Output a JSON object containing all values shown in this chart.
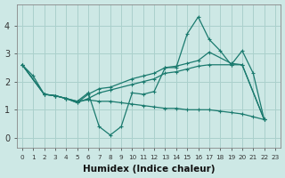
{
  "xlabel": "Humidex (Indice chaleur)",
  "bg_color": "#cde8e5",
  "grid_color": "#aad0cc",
  "line_color": "#1a7a6e",
  "xlim": [
    -0.5,
    23.5
  ],
  "ylim": [
    -0.35,
    4.75
  ],
  "ytick_values": [
    0,
    1,
    2,
    3,
    4
  ],
  "line1_x": [
    0,
    1,
    2,
    3,
    4,
    5,
    6,
    7,
    8,
    9,
    10,
    11,
    12,
    13,
    14,
    15,
    16,
    17,
    18,
    19,
    20,
    21,
    22
  ],
  "line1_y": [
    2.6,
    2.2,
    1.55,
    1.5,
    1.4,
    1.3,
    1.6,
    0.4,
    0.1,
    0.4,
    1.6,
    1.55,
    1.65,
    2.5,
    2.5,
    3.7,
    4.3,
    3.5,
    3.1,
    2.6,
    3.1,
    2.3,
    0.65
  ],
  "line2_x": [
    0,
    2,
    3,
    4,
    5,
    6,
    7,
    8,
    10,
    11,
    12,
    13,
    14,
    15,
    16,
    17,
    19,
    20,
    22
  ],
  "line2_y": [
    2.6,
    1.55,
    1.5,
    1.4,
    1.25,
    1.55,
    1.75,
    1.8,
    2.1,
    2.2,
    2.3,
    2.5,
    2.55,
    2.65,
    2.75,
    3.05,
    2.65,
    2.6,
    0.65
  ],
  "line3_x": [
    0,
    2,
    3,
    4,
    5,
    6,
    7,
    8,
    10,
    11,
    12,
    13,
    14,
    15,
    16,
    17,
    19,
    20,
    22
  ],
  "line3_y": [
    2.6,
    1.55,
    1.5,
    1.4,
    1.25,
    1.4,
    1.6,
    1.7,
    1.9,
    2.0,
    2.1,
    2.3,
    2.35,
    2.45,
    2.55,
    2.6,
    2.6,
    2.6,
    0.65
  ],
  "line4_x": [
    0,
    2,
    3,
    4,
    5,
    6,
    7,
    8,
    9,
    10,
    11,
    12,
    13,
    14,
    15,
    16,
    17,
    18,
    19,
    20,
    21,
    22
  ],
  "line4_y": [
    2.6,
    1.55,
    1.5,
    1.4,
    1.3,
    1.35,
    1.3,
    1.3,
    1.25,
    1.2,
    1.15,
    1.1,
    1.05,
    1.05,
    1.0,
    1.0,
    1.0,
    0.95,
    0.9,
    0.85,
    0.75,
    0.65
  ]
}
